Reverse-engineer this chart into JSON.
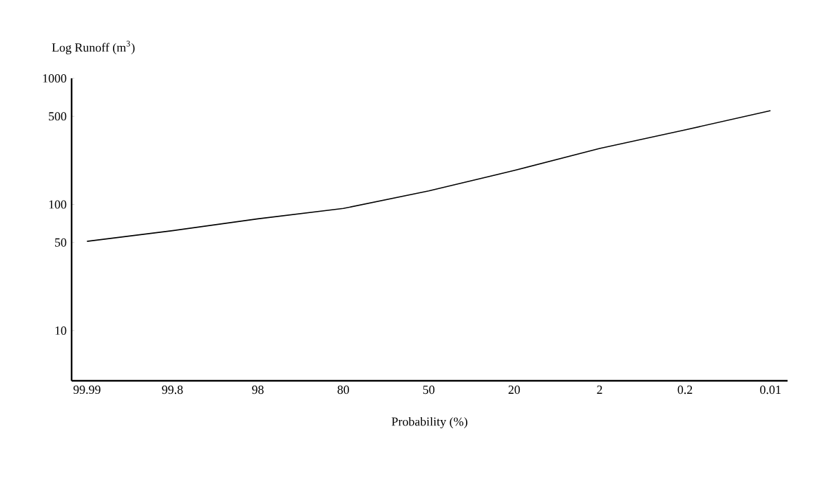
{
  "chart_data": {
    "type": "line",
    "xlabel": "Probability (%)",
    "ylabel": "Log Runoff (m$^{3}$)",
    "categories": [
      "99.99",
      "99.8",
      "98",
      "80",
      "50",
      "20",
      "2",
      "0.2",
      "0.01"
    ],
    "values": [
      51,
      62,
      77,
      93,
      128,
      186,
      278,
      390,
      555
    ],
    "color": "#000000",
    "log": "y",
    "ylim": [
      4,
      1000
    ],
    "yticks": [
      10,
      50,
      100,
      500,
      1000
    ],
    "grid": false
  }
}
